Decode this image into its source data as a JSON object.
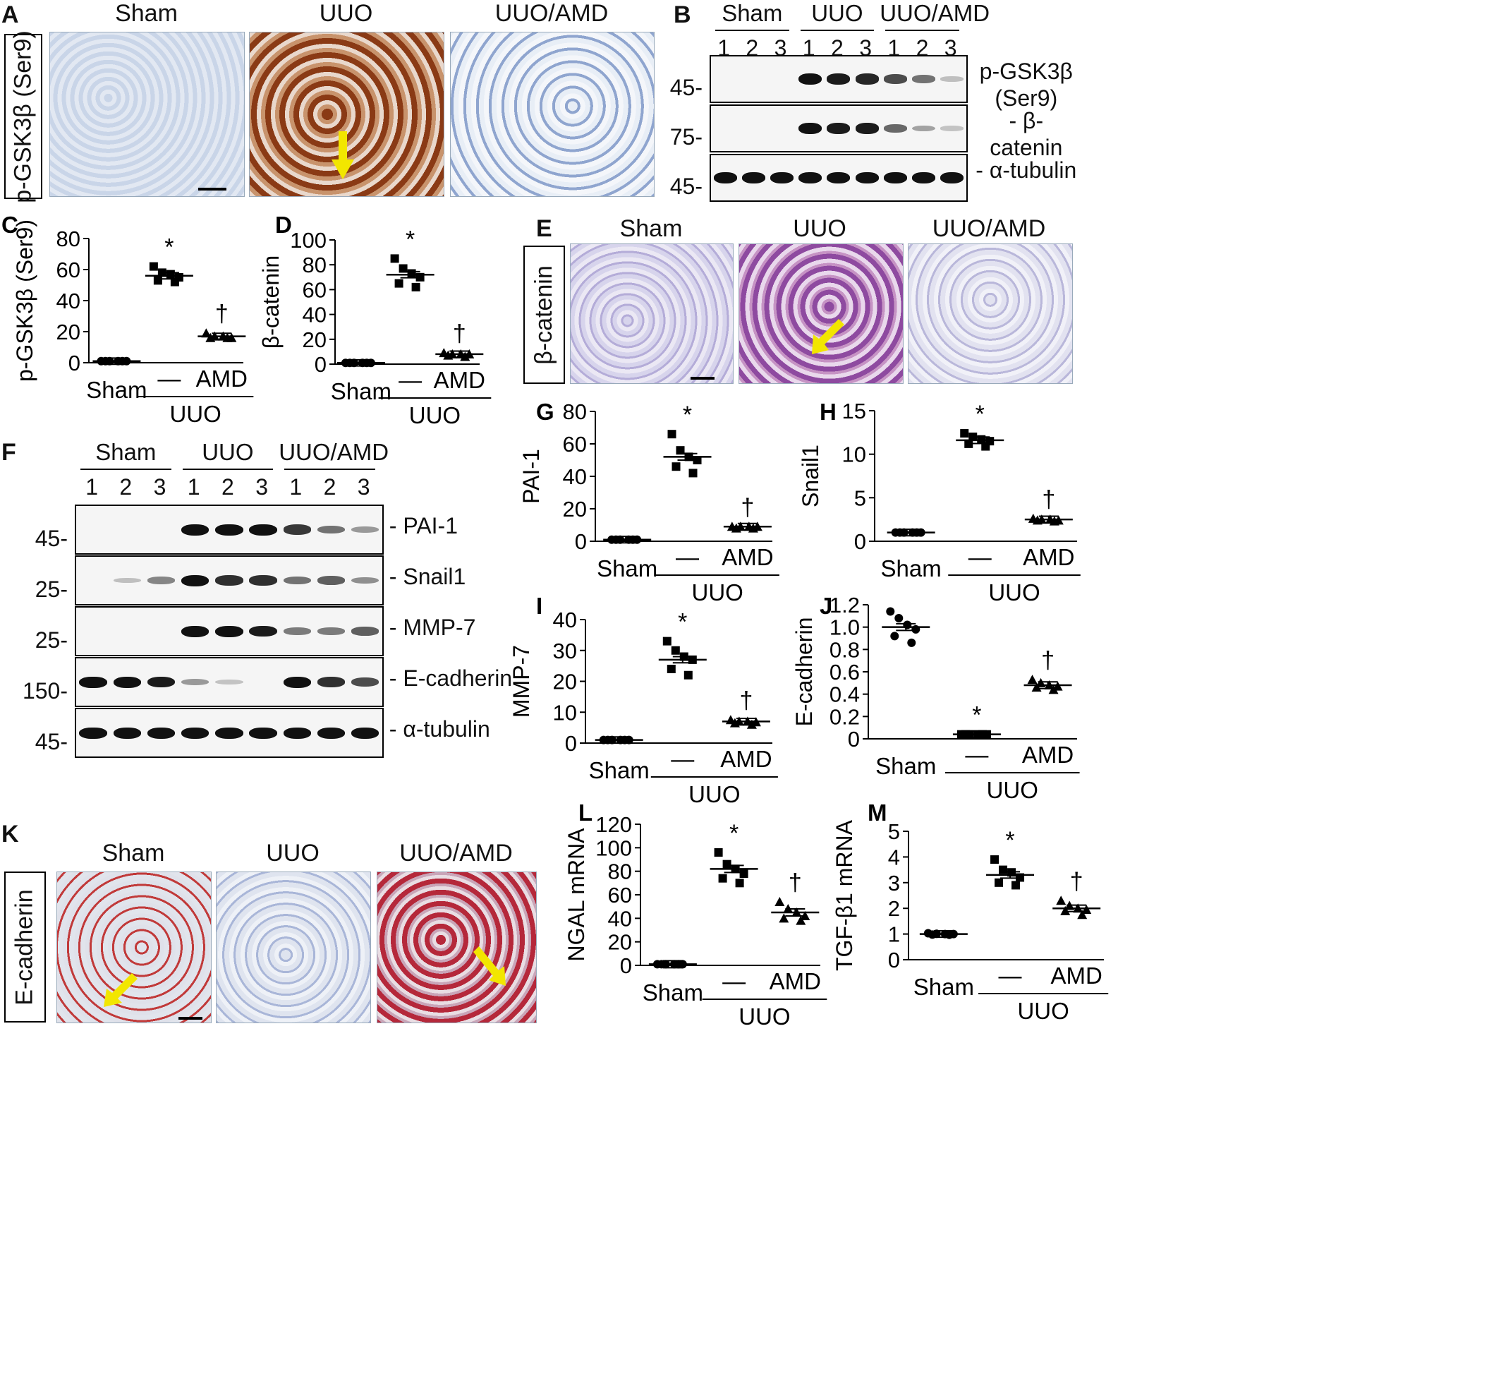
{
  "colors": {
    "hematoxylin": "#4a6fb8",
    "dab": "#8a3a15",
    "aec": "#b5283a",
    "pas": "#8e4aa0",
    "arrow": "#f2e600"
  },
  "panelA": {
    "letter": "A",
    "row_label": "p-GSK3β (Ser9)",
    "groups": [
      "Sham",
      "UUO",
      "UUO/AMD"
    ]
  },
  "panelB": {
    "letter": "B",
    "groups": [
      "Sham",
      "UUO",
      "UUO/AMD"
    ],
    "lanes": [
      "1",
      "2",
      "3",
      "1",
      "2",
      "3",
      "1",
      "2",
      "3"
    ],
    "rows": [
      {
        "protein": "p-GSK3β (Ser9)",
        "mw": "45-",
        "intensity": [
          0,
          0,
          0,
          1,
          0.95,
          0.9,
          0.7,
          0.5,
          0.1
        ]
      },
      {
        "protein": "- β-catenin",
        "mw": "75-",
        "intensity": [
          0,
          0,
          0,
          1,
          0.95,
          0.95,
          0.55,
          0.25,
          0.08
        ]
      },
      {
        "protein": "- α-tubulin",
        "mw": "45-",
        "intensity": [
          1,
          1,
          1,
          1,
          1,
          1,
          1,
          1,
          1
        ]
      }
    ]
  },
  "panelE": {
    "letter": "E",
    "row_label": "β-catenin",
    "groups": [
      "Sham",
      "UUO",
      "UUO/AMD"
    ]
  },
  "panelF": {
    "letter": "F",
    "groups": [
      "Sham",
      "UUO",
      "UUO/AMD"
    ],
    "lanes": [
      "1",
      "2",
      "3",
      "1",
      "2",
      "3",
      "1",
      "2",
      "3"
    ],
    "rows": [
      {
        "protein": "- PAI-1",
        "mw": "45-",
        "intensity": [
          0,
          0,
          0,
          1,
          1,
          1,
          0.8,
          0.5,
          0.3
        ]
      },
      {
        "protein": "- Snail1",
        "mw": "25-",
        "intensity": [
          0,
          0.1,
          0.4,
          1,
          0.85,
          0.85,
          0.5,
          0.6,
          0.35
        ]
      },
      {
        "protein": "- MMP-7",
        "mw": "25-",
        "intensity": [
          0,
          0,
          0,
          1,
          1,
          0.95,
          0.45,
          0.45,
          0.6
        ]
      },
      {
        "protein": "- E-cadherin",
        "mw": "150-",
        "intensity": [
          1,
          1,
          0.95,
          0.3,
          0.08,
          0,
          1,
          0.85,
          0.7
        ]
      },
      {
        "protein": "- α-tubulin",
        "mw": "45-",
        "intensity": [
          1,
          1,
          1,
          1,
          1,
          1,
          1,
          1,
          1
        ]
      }
    ]
  },
  "panelK": {
    "letter": "K",
    "row_label": "E-cadherin",
    "groups": [
      "Sham",
      "UUO",
      "UUO/AMD"
    ]
  },
  "chart_data": [
    {
      "panel": "C",
      "type": "scatter",
      "ylabel": "p-GSK3β (Ser9)",
      "ylim": [
        0,
        80
      ],
      "yticks": [
        0,
        20,
        40,
        60,
        80
      ],
      "groups": [
        "Sham",
        "—",
        "AMD"
      ],
      "bracket": "UUO",
      "series": [
        {
          "group": "Sham",
          "mean": 1,
          "marker": "circle",
          "points": [
            1,
            1,
            1,
            1,
            1,
            1
          ],
          "sig": ""
        },
        {
          "group": "—",
          "mean": 56,
          "marker": "square",
          "points": [
            62,
            58,
            57,
            55,
            53,
            52
          ],
          "sig": "*"
        },
        {
          "group": "AMD",
          "mean": 17,
          "marker": "triangle",
          "points": [
            19,
            17,
            17,
            16,
            16,
            16
          ],
          "sig": "†"
        }
      ]
    },
    {
      "panel": "D",
      "type": "scatter",
      "ylabel": "β-catenin",
      "ylim": [
        0,
        100
      ],
      "yticks": [
        0,
        20,
        40,
        60,
        80,
        100
      ],
      "groups": [
        "Sham",
        "—",
        "AMD"
      ],
      "bracket": "UUO",
      "series": [
        {
          "group": "Sham",
          "mean": 1,
          "marker": "circle",
          "points": [
            1,
            1,
            1,
            1,
            1,
            1
          ],
          "sig": ""
        },
        {
          "group": "—",
          "mean": 72,
          "marker": "square",
          "points": [
            85,
            77,
            73,
            70,
            65,
            62
          ],
          "sig": "*"
        },
        {
          "group": "AMD",
          "mean": 8,
          "marker": "triangle",
          "points": [
            9,
            8,
            8,
            8,
            7,
            6
          ],
          "sig": "†"
        }
      ]
    },
    {
      "panel": "G",
      "type": "scatter",
      "ylabel": "PAI-1",
      "ylim": [
        0,
        80
      ],
      "yticks": [
        0,
        20,
        40,
        60,
        80
      ],
      "groups": [
        "Sham",
        "—",
        "AMD"
      ],
      "bracket": "UUO",
      "series": [
        {
          "group": "Sham",
          "mean": 1,
          "marker": "circle",
          "points": [
            1,
            1,
            1,
            1,
            1,
            1
          ],
          "sig": ""
        },
        {
          "group": "—",
          "mean": 52,
          "marker": "square",
          "points": [
            66,
            56,
            52,
            50,
            46,
            42
          ],
          "sig": "*"
        },
        {
          "group": "AMD",
          "mean": 9,
          "marker": "triangle",
          "points": [
            9,
            9,
            9,
            9,
            8,
            8
          ],
          "sig": "†"
        }
      ]
    },
    {
      "panel": "H",
      "type": "scatter",
      "ylabel": "Snail1",
      "ylim": [
        0,
        15
      ],
      "yticks": [
        0,
        5,
        10,
        15
      ],
      "groups": [
        "Sham",
        "—",
        "AMD"
      ],
      "bracket": "UUO",
      "series": [
        {
          "group": "Sham",
          "mean": 1,
          "marker": "circle",
          "points": [
            1,
            1,
            1,
            1,
            1,
            1
          ],
          "sig": ""
        },
        {
          "group": "—",
          "mean": 11.6,
          "marker": "square",
          "points": [
            12.4,
            12.0,
            11.7,
            11.5,
            11.2,
            10.9
          ],
          "sig": "*"
        },
        {
          "group": "AMD",
          "mean": 2.5,
          "marker": "triangle",
          "points": [
            2.6,
            2.5,
            2.5,
            2.4,
            2.4,
            2.3
          ],
          "sig": "†"
        }
      ]
    },
    {
      "panel": "I",
      "type": "scatter",
      "ylabel": "MMP-7",
      "ylim": [
        0,
        40
      ],
      "yticks": [
        0,
        10,
        20,
        30,
        40
      ],
      "groups": [
        "Sham",
        "—",
        "AMD"
      ],
      "bracket": "UUO",
      "series": [
        {
          "group": "Sham",
          "mean": 1,
          "marker": "circle",
          "points": [
            1,
            1,
            1,
            1,
            1,
            1
          ],
          "sig": ""
        },
        {
          "group": "—",
          "mean": 27,
          "marker": "square",
          "points": [
            33,
            30,
            28,
            27,
            24,
            22
          ],
          "sig": "*"
        },
        {
          "group": "AMD",
          "mean": 7,
          "marker": "triangle",
          "points": [
            7.5,
            7,
            7,
            6.8,
            6.5,
            6
          ],
          "sig": "†"
        }
      ]
    },
    {
      "panel": "J",
      "type": "scatter",
      "ylabel": "E-cadherin",
      "ylim": [
        0,
        1.2
      ],
      "yticks": [
        "0",
        "0.2",
        "0.4",
        "0.6",
        "0.8",
        "1.0",
        "1.2"
      ],
      "groups": [
        "Sham",
        "—",
        "AMD"
      ],
      "bracket": "UUO",
      "series": [
        {
          "group": "Sham",
          "mean": 1.0,
          "marker": "circle",
          "points": [
            1.14,
            1.08,
            1.02,
            0.98,
            0.92,
            0.86
          ],
          "sig": ""
        },
        {
          "group": "—",
          "mean": 0.04,
          "marker": "square",
          "points": [
            0.04,
            0.04,
            0.04,
            0.04,
            0.04,
            0.04
          ],
          "sig": "*"
        },
        {
          "group": "AMD",
          "mean": 0.48,
          "marker": "triangle",
          "points": [
            0.53,
            0.5,
            0.48,
            0.47,
            0.46,
            0.44
          ],
          "sig": "†"
        }
      ]
    },
    {
      "panel": "L",
      "type": "scatter",
      "ylabel": "NGAL mRNA",
      "ylim": [
        0,
        120
      ],
      "yticks": [
        0,
        20,
        40,
        60,
        80,
        100,
        120
      ],
      "groups": [
        "Sham",
        "—",
        "AMD"
      ],
      "bracket": "UUO",
      "series": [
        {
          "group": "Sham",
          "mean": 1,
          "marker": "circle",
          "points": [
            1,
            1,
            1,
            1,
            1,
            1
          ],
          "sig": ""
        },
        {
          "group": "—",
          "mean": 82,
          "marker": "square",
          "points": [
            96,
            86,
            82,
            78,
            74,
            70
          ],
          "sig": "*"
        },
        {
          "group": "AMD",
          "mean": 45,
          "marker": "triangle",
          "points": [
            54,
            48,
            45,
            42,
            40,
            38
          ],
          "sig": "†"
        }
      ]
    },
    {
      "panel": "M",
      "type": "scatter",
      "ylabel": "TGF-β1 mRNA",
      "ylim": [
        0,
        5
      ],
      "yticks": [
        0,
        1,
        2,
        3,
        4,
        5
      ],
      "groups": [
        "Sham",
        "—",
        "AMD"
      ],
      "bracket": "UUO",
      "series": [
        {
          "group": "Sham",
          "mean": 1,
          "marker": "circle",
          "points": [
            1.03,
            1.01,
            1,
            1,
            0.98,
            0.97
          ],
          "sig": ""
        },
        {
          "group": "—",
          "mean": 3.3,
          "marker": "square",
          "points": [
            3.9,
            3.5,
            3.4,
            3.2,
            3.0,
            2.9
          ],
          "sig": "*"
        },
        {
          "group": "AMD",
          "mean": 2.0,
          "marker": "triangle",
          "points": [
            2.3,
            2.1,
            2.0,
            1.95,
            1.9,
            1.75
          ],
          "sig": "†"
        }
      ]
    }
  ]
}
